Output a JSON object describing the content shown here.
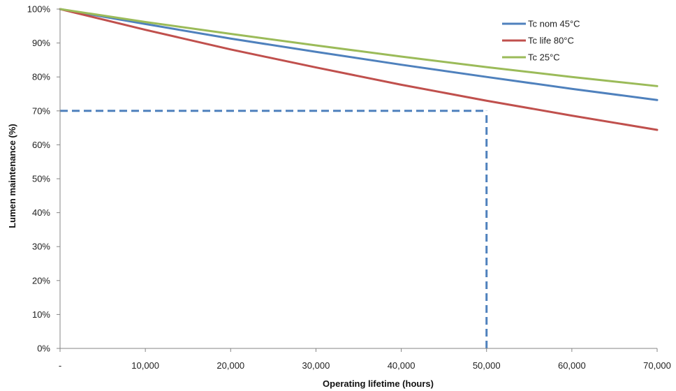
{
  "chart_data": {
    "type": "line",
    "title": "",
    "xlabel": "Operating lifetime (hours)",
    "ylabel": "Lumen maintenance (%)",
    "xlim": [
      0,
      70000
    ],
    "ylim": [
      0,
      100
    ],
    "grid": false,
    "legend_position": "top-right",
    "x_ticks": [
      {
        "value": 0,
        "label": "-"
      },
      {
        "value": 10000,
        "label": "10,000"
      },
      {
        "value": 20000,
        "label": "20,000"
      },
      {
        "value": 30000,
        "label": "30,000"
      },
      {
        "value": 40000,
        "label": "40,000"
      },
      {
        "value": 50000,
        "label": "50,000"
      },
      {
        "value": 60000,
        "label": "60,000"
      },
      {
        "value": 70000,
        "label": "70,000"
      }
    ],
    "y_ticks": [
      {
        "value": 0,
        "label": "0%"
      },
      {
        "value": 10,
        "label": "10%"
      },
      {
        "value": 20,
        "label": "20%"
      },
      {
        "value": 30,
        "label": "30%"
      },
      {
        "value": 40,
        "label": "40%"
      },
      {
        "value": 50,
        "label": "50%"
      },
      {
        "value": 60,
        "label": "60%"
      },
      {
        "value": 70,
        "label": "70%"
      },
      {
        "value": 80,
        "label": "80%"
      },
      {
        "value": 90,
        "label": "90%"
      },
      {
        "value": 100,
        "label": "100%"
      }
    ],
    "series": [
      {
        "name": "Tc nom 45°C",
        "color": "#4F81BD",
        "x": [
          0,
          10000,
          20000,
          30000,
          40000,
          50000,
          60000,
          70000
        ],
        "y": [
          100,
          95.6,
          91.3,
          87.4,
          83.6,
          80.0,
          76.5,
          73.2
        ]
      },
      {
        "name": "Tc life 80°C",
        "color": "#C0504D",
        "x": [
          0,
          10000,
          20000,
          30000,
          40000,
          50000,
          60000,
          70000
        ],
        "y": [
          100,
          93.9,
          88.1,
          82.8,
          77.7,
          73.0,
          68.6,
          64.4
        ]
      },
      {
        "name": "Tc 25°C",
        "color": "#9BBB59",
        "x": [
          0,
          10000,
          20000,
          30000,
          40000,
          50000,
          60000,
          70000
        ],
        "y": [
          100,
          96.2,
          92.7,
          89.3,
          86.0,
          82.9,
          80.0,
          77.3
        ]
      }
    ],
    "reference_lines": [
      {
        "type": "horizontal",
        "y": 70,
        "x_from": 0,
        "x_to": 50000,
        "color": "#4F81BD",
        "style": "dashed"
      },
      {
        "type": "vertical",
        "x": 50000,
        "y_from": 0,
        "y_to": 70,
        "color": "#4F81BD",
        "style": "dashed"
      }
    ]
  }
}
